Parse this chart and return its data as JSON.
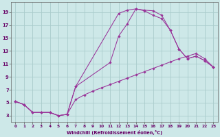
{
  "xlabel": "Windchill (Refroidissement éolien,°C)",
  "bg_color": "#cde8e8",
  "grid_color": "#aacccc",
  "line_color": "#993399",
  "xlim": [
    -0.5,
    23.5
  ],
  "ylim": [
    2.0,
    20.5
  ],
  "xticks": [
    0,
    1,
    2,
    3,
    4,
    5,
    6,
    7,
    8,
    9,
    10,
    11,
    12,
    13,
    14,
    15,
    16,
    17,
    18,
    19,
    20,
    21,
    22,
    23
  ],
  "yticks": [
    3,
    5,
    7,
    9,
    11,
    13,
    15,
    17,
    19
  ],
  "lines": [
    {
      "x": [
        0,
        1,
        2,
        3,
        4,
        5,
        6,
        7,
        11,
        12,
        13,
        14,
        15,
        16,
        17,
        18,
        19,
        20,
        21,
        22,
        23
      ],
      "y": [
        5.2,
        4.7,
        3.5,
        3.5,
        3.5,
        3.0,
        3.2,
        7.5,
        11.2,
        15.3,
        17.2,
        19.5,
        19.3,
        19.2,
        18.5,
        16.2,
        13.3,
        11.8,
        12.2,
        11.5,
        10.5
      ]
    },
    {
      "x": [
        0,
        1,
        2,
        3,
        4,
        5,
        6,
        7,
        8,
        9,
        10,
        11,
        12,
        13,
        14,
        15,
        16,
        17,
        18,
        19,
        20,
        21,
        22,
        23
      ],
      "y": [
        5.2,
        4.7,
        3.5,
        3.5,
        3.5,
        3.0,
        3.2,
        5.5,
        6.2,
        6.8,
        7.3,
        7.8,
        8.3,
        8.8,
        9.3,
        9.8,
        10.3,
        10.8,
        11.3,
        11.8,
        12.2,
        12.6,
        11.8,
        10.5
      ]
    },
    {
      "x": [
        0,
        1,
        2,
        3,
        4,
        5,
        6,
        7,
        12,
        13,
        14,
        15,
        16,
        17,
        18,
        19,
        20,
        21,
        22,
        23
      ],
      "y": [
        5.2,
        4.7,
        3.5,
        3.5,
        3.5,
        3.0,
        3.2,
        7.5,
        18.8,
        19.3,
        19.5,
        19.2,
        18.5,
        18.0,
        16.2,
        13.3,
        11.8,
        12.2,
        11.5,
        10.5
      ]
    }
  ]
}
